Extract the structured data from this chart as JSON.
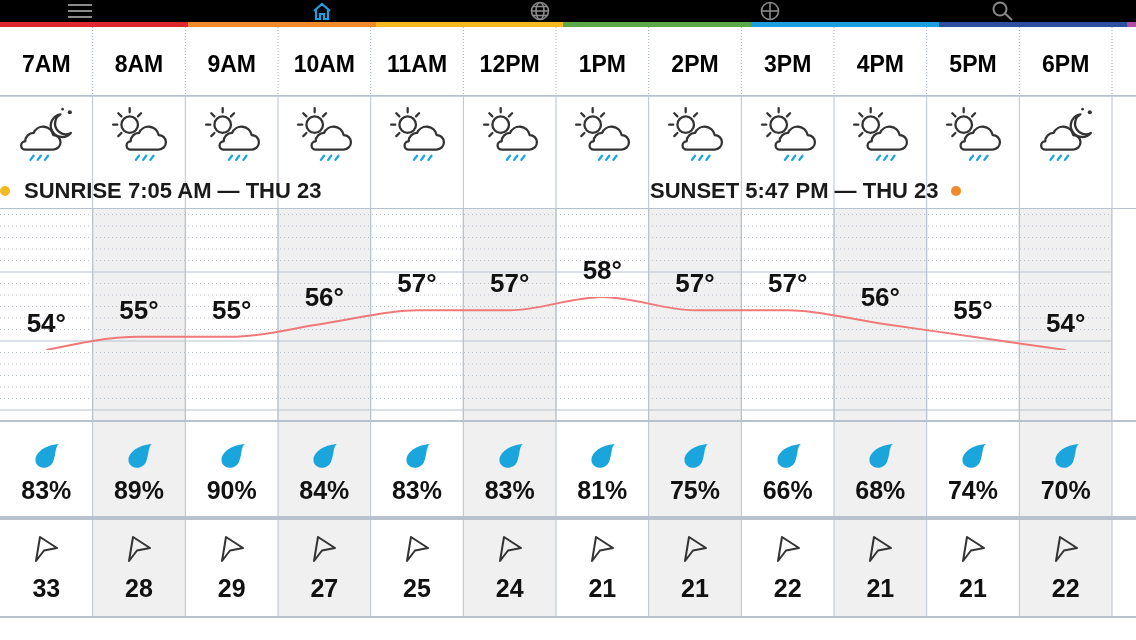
{
  "chart_data": [
    {
      "type": "line",
      "categories": [
        "7AM",
        "8AM",
        "9AM",
        "10AM",
        "11AM",
        "12PM",
        "1PM",
        "2PM",
        "3PM",
        "4PM",
        "5PM",
        "6PM"
      ],
      "series": [
        {
          "color": "#f07878",
          "values": [
            54,
            55,
            55,
            56,
            57,
            57,
            58,
            57,
            57,
            56,
            55,
            54
          ],
          "value_labels": [
            "54°",
            "55°",
            "55°",
            "56°",
            "57°",
            "57°",
            "58°",
            "57°",
            "57°",
            "56°",
            "55°",
            "54°"
          ]
        }
      ],
      "annotations": [
        "SUNRISE 7:05 AM — THU 23",
        "SUNSET 5:47 PM — THU 23"
      ],
      "grid": true,
      "tick_labels": "x"
    },
    {
      "type": "other",
      "values": [
        83,
        89,
        90,
        84,
        83,
        83,
        81,
        75,
        66,
        68,
        74,
        70
      ],
      "value_labels": [
        "83%",
        "89%",
        "90%",
        "84%",
        "83%",
        "83%",
        "81%",
        "75%",
        "66%",
        "68%",
        "74%",
        "70%"
      ]
    },
    {
      "type": "other",
      "values": [
        33,
        28,
        29,
        27,
        25,
        24,
        21,
        21,
        22,
        21,
        21,
        22
      ],
      "data_labels": true
    }
  ]
}
